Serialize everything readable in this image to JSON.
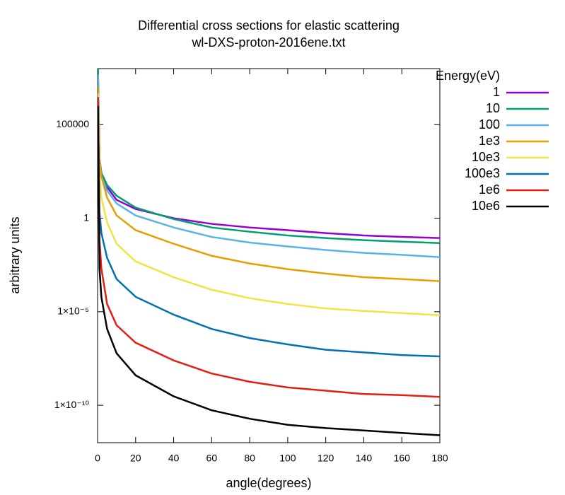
{
  "chart_data": {
    "type": "line",
    "title": "Differential cross sections for elastic scattering",
    "subtitle": "wl-DXS-proton-2016ene.txt",
    "x_label": "angle(degrees)",
    "y_label": "arbitrary units",
    "legend_title": "Energy(eV)",
    "legend_position": "outside-right",
    "log_y": true,
    "grid": false,
    "xlim": [
      0,
      180
    ],
    "xticks": [
      0,
      20,
      40,
      60,
      80,
      100,
      120,
      140,
      160,
      180
    ],
    "ylim": [
      1e-12,
      100000000.0
    ],
    "yticks": [
      {
        "value": 1e-10,
        "label": "1×10⁻¹⁰"
      },
      {
        "value": 1e-05,
        "label": "1×10⁻⁵"
      },
      1,
      100000
    ],
    "x": [
      0.2,
      1,
      2,
      5,
      10,
      20,
      40,
      60,
      80,
      100,
      120,
      140,
      160,
      180
    ],
    "series": [
      {
        "name": "1",
        "color": "#9400d3",
        "values": [
          100000000.0,
          1500,
          265,
          46,
          9.6,
          3.1,
          1,
          0.5,
          0.32,
          0.23,
          0.16,
          0.12,
          0.1,
          0.087
        ]
      },
      {
        "name": "10",
        "color": "#009e73",
        "values": [
          100000000.0,
          1500,
          265,
          60,
          16,
          3.7,
          0.9,
          0.32,
          0.19,
          0.12,
          0.087,
          0.067,
          0.056,
          0.047
        ]
      },
      {
        "name": "100",
        "color": "#56b4e9",
        "values": [
          50000000.0,
          1200,
          170,
          30,
          6.2,
          1.4,
          0.32,
          0.1,
          0.05,
          0.031,
          0.02,
          0.014,
          0.011,
          0.0083
        ]
      },
      {
        "name": "1e3",
        "color": "#e69f00",
        "values": [
          10000000.0,
          1500,
          170,
          12.6,
          1.4,
          0.23,
          0.043,
          0.0098,
          0.0038,
          0.0019,
          0.0011,
          0.0007,
          0.00056,
          0.00043
        ]
      },
      {
        "name": "10e3",
        "color": "#f0e442",
        "values": [
          5000000.0,
          170,
          12.6,
          0.6,
          0.043,
          0.0049,
          0.0007,
          0.00015,
          5.3e-05,
          2.6e-05,
          1.5e-05,
          1.1e-05,
          8.5e-06,
          6.5e-06
        ]
      },
      {
        "name": "100e3",
        "color": "#0072b2",
        "values": [
          3000000.0,
          2.2,
          0.16,
          0.0076,
          0.00056,
          6.3e-05,
          7e-06,
          1.2e-06,
          3.9e-07,
          1.8e-07,
          9.3e-08,
          6.7e-08,
          4.8e-08,
          4.1e-08
        ]
      },
      {
        "name": "1e6",
        "color": "#e51e10",
        "values": [
          3000000.0,
          0.067,
          0.002,
          2.6e-05,
          1.9e-06,
          2.2e-07,
          2.5e-08,
          5e-09,
          1.8e-09,
          9e-10,
          6e-10,
          4e-10,
          3.5e-10,
          2.8e-10
        ]
      },
      {
        "name": "10e6",
        "color": "#000000",
        "values": [
          1000000.0,
          0.002,
          6e-05,
          1.2e-06,
          6e-08,
          4e-09,
          3e-10,
          5.4e-11,
          1.9e-11,
          9e-12,
          6e-12,
          4.5e-12,
          3.3e-12,
          2.5e-12
        ]
      }
    ]
  }
}
